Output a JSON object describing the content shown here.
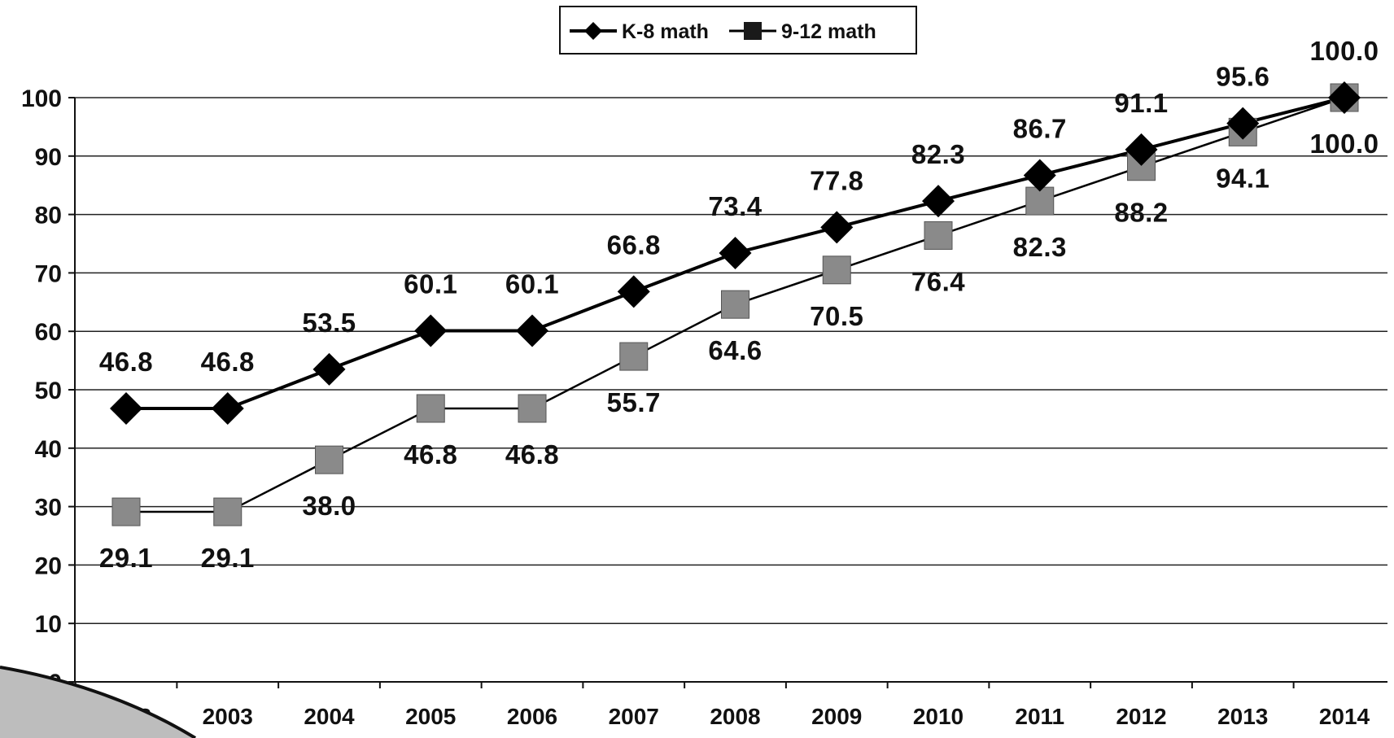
{
  "chart_data": {
    "type": "line",
    "categories": [
      "2002",
      "2003",
      "2004",
      "2005",
      "2006",
      "2007",
      "2008",
      "2009",
      "2010",
      "2011",
      "2012",
      "2013",
      "2014"
    ],
    "series": [
      {
        "name": "K-8 math",
        "marker": "diamond",
        "color": "#000000",
        "values": [
          46.8,
          46.8,
          53.5,
          60.1,
          60.1,
          66.8,
          73.4,
          77.8,
          82.3,
          86.7,
          91.1,
          95.6,
          100.0
        ]
      },
      {
        "name": "9-12 math",
        "marker": "square",
        "color": "#8a8a8a",
        "values": [
          29.1,
          29.1,
          38.0,
          46.8,
          46.8,
          55.7,
          64.6,
          70.5,
          76.4,
          82.3,
          88.2,
          94.1,
          100.0
        ]
      }
    ],
    "y_ticks": [
      "0",
      "10",
      "20",
      "30",
      "40",
      "50",
      "60",
      "70",
      "80",
      "90",
      "100"
    ],
    "ylim": [
      0,
      100
    ],
    "grid": true,
    "legend_position": "top-center",
    "title": "",
    "xlabel": "",
    "ylabel": ""
  }
}
